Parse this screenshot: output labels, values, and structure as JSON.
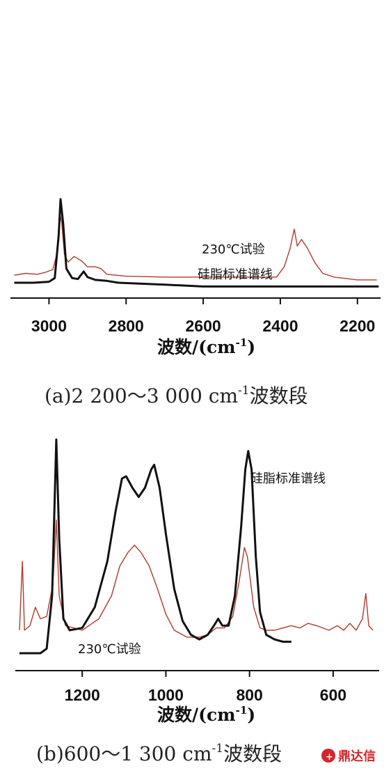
{
  "chart_data": [
    {
      "type": "line",
      "xlim": [
        3100,
        2140
      ],
      "x_reversed": true,
      "xlabel": "波数/(cm",
      "xlabel_sup": "-1",
      "xlabel_tail": ")",
      "xticks": [
        3000,
        2800,
        2600,
        2400,
        2200
      ],
      "caption": "(a)2 200～3 000 cm",
      "caption_sup": "-1",
      "caption_tail": "波数段",
      "series": [
        {
          "name": "230℃试验",
          "color": "#b03a2e",
          "points": [
            [
              3090,
              0.08
            ],
            [
              3060,
              0.1
            ],
            [
              3030,
              0.09
            ],
            [
              3010,
              0.11
            ],
            [
              2990,
              0.14
            ],
            [
              2980,
              0.3
            ],
            [
              2972,
              0.74
            ],
            [
              2967,
              0.64
            ],
            [
              2960,
              0.3
            ],
            [
              2950,
              0.22
            ],
            [
              2935,
              0.28
            ],
            [
              2915,
              0.23
            ],
            [
              2900,
              0.17
            ],
            [
              2880,
              0.17
            ],
            [
              2865,
              0.15
            ],
            [
              2850,
              0.09
            ],
            [
              2800,
              0.07
            ],
            [
              2700,
              0.06
            ],
            [
              2600,
              0.06
            ],
            [
              2500,
              0.06
            ],
            [
              2440,
              0.06
            ],
            [
              2410,
              0.06
            ],
            [
              2390,
              0.17
            ],
            [
              2375,
              0.36
            ],
            [
              2364,
              0.57
            ],
            [
              2356,
              0.39
            ],
            [
              2345,
              0.46
            ],
            [
              2330,
              0.37
            ],
            [
              2310,
              0.21
            ],
            [
              2290,
              0.1
            ],
            [
              2260,
              0.06
            ],
            [
              2200,
              0.03
            ],
            [
              2150,
              0.03
            ]
          ]
        },
        {
          "name": "硅脂标准谱线",
          "color": "#111111",
          "points": [
            [
              3090,
              0.0
            ],
            [
              3040,
              0.0
            ],
            [
              3000,
              0.01
            ],
            [
              2985,
              0.05
            ],
            [
              2975,
              0.5
            ],
            [
              2970,
              0.89
            ],
            [
              2963,
              0.62
            ],
            [
              2955,
              0.15
            ],
            [
              2940,
              0.05
            ],
            [
              2925,
              0.04
            ],
            [
              2910,
              0.12
            ],
            [
              2900,
              0.06
            ],
            [
              2880,
              0.03
            ],
            [
              2850,
              0.02
            ],
            [
              2820,
              0.0
            ],
            [
              2700,
              -0.02
            ],
            [
              2600,
              -0.04
            ],
            [
              2400,
              -0.04
            ],
            [
              2200,
              -0.04
            ],
            [
              2145,
              -0.04
            ]
          ]
        }
      ]
    },
    {
      "type": "line",
      "xlim": [
        1360,
        490
      ],
      "x_reversed": true,
      "xlabel": "波数/(cm",
      "xlabel_sup": "-1",
      "xlabel_tail": ")",
      "xticks": [
        1200,
        1000,
        800,
        600
      ],
      "caption": "(b)600～1 300 cm",
      "caption_sup": "-1",
      "caption_tail": "波数段",
      "series": [
        {
          "name": "硅脂标准谱线",
          "color": "#111111",
          "points": [
            [
              1350,
              0.0
            ],
            [
              1300,
              0.0
            ],
            [
              1285,
              0.02
            ],
            [
              1272,
              0.25
            ],
            [
              1262,
              0.93
            ],
            [
              1255,
              0.5
            ],
            [
              1245,
              0.15
            ],
            [
              1230,
              0.1
            ],
            [
              1200,
              0.11
            ],
            [
              1170,
              0.2
            ],
            [
              1140,
              0.4
            ],
            [
              1120,
              0.62
            ],
            [
              1105,
              0.76
            ],
            [
              1095,
              0.77
            ],
            [
              1080,
              0.72
            ],
            [
              1065,
              0.68
            ],
            [
              1050,
              0.72
            ],
            [
              1035,
              0.8
            ],
            [
              1028,
              0.82
            ],
            [
              1015,
              0.72
            ],
            [
              1000,
              0.52
            ],
            [
              980,
              0.28
            ],
            [
              960,
              0.14
            ],
            [
              940,
              0.08
            ],
            [
              920,
              0.06
            ],
            [
              900,
              0.08
            ],
            [
              885,
              0.12
            ],
            [
              875,
              0.15
            ],
            [
              865,
              0.12
            ],
            [
              850,
              0.12
            ],
            [
              835,
              0.25
            ],
            [
              820,
              0.55
            ],
            [
              810,
              0.8
            ],
            [
              803,
              0.88
            ],
            [
              795,
              0.8
            ],
            [
              785,
              0.42
            ],
            [
              775,
              0.18
            ],
            [
              760,
              0.08
            ],
            [
              740,
              0.06
            ],
            [
              720,
              0.05
            ],
            [
              700,
              0.05
            ]
          ]
        },
        {
          "name": "230℃试验",
          "color": "#b03a2e",
          "points": [
            [
              1350,
              0.1
            ],
            [
              1343,
              0.4
            ],
            [
              1338,
              0.1
            ],
            [
              1325,
              0.12
            ],
            [
              1312,
              0.2
            ],
            [
              1300,
              0.15
            ],
            [
              1285,
              0.16
            ],
            [
              1270,
              0.3
            ],
            [
              1262,
              0.58
            ],
            [
              1255,
              0.25
            ],
            [
              1240,
              0.12
            ],
            [
              1200,
              0.1
            ],
            [
              1160,
              0.15
            ],
            [
              1130,
              0.25
            ],
            [
              1110,
              0.38
            ],
            [
              1090,
              0.44
            ],
            [
              1075,
              0.47
            ],
            [
              1060,
              0.44
            ],
            [
              1040,
              0.38
            ],
            [
              1020,
              0.28
            ],
            [
              1000,
              0.17
            ],
            [
              980,
              0.1
            ],
            [
              950,
              0.07
            ],
            [
              920,
              0.07
            ],
            [
              900,
              0.08
            ],
            [
              880,
              0.11
            ],
            [
              860,
              0.11
            ],
            [
              840,
              0.16
            ],
            [
              825,
              0.31
            ],
            [
              812,
              0.46
            ],
            [
              805,
              0.42
            ],
            [
              790,
              0.2
            ],
            [
              775,
              0.11
            ],
            [
              760,
              0.1
            ],
            [
              740,
              0.1
            ],
            [
              720,
              0.11
            ],
            [
              700,
              0.12
            ],
            [
              680,
              0.11
            ],
            [
              660,
              0.13
            ],
            [
              640,
              0.12
            ],
            [
              610,
              0.1
            ],
            [
              590,
              0.12
            ],
            [
              575,
              0.1
            ],
            [
              560,
              0.13
            ],
            [
              545,
              0.1
            ],
            [
              530,
              0.15
            ],
            [
              522,
              0.26
            ],
            [
              515,
              0.12
            ],
            [
              505,
              0.1
            ]
          ]
        }
      ]
    }
  ],
  "watermark": {
    "text": "鼎达信",
    "color": "#d3262b"
  }
}
